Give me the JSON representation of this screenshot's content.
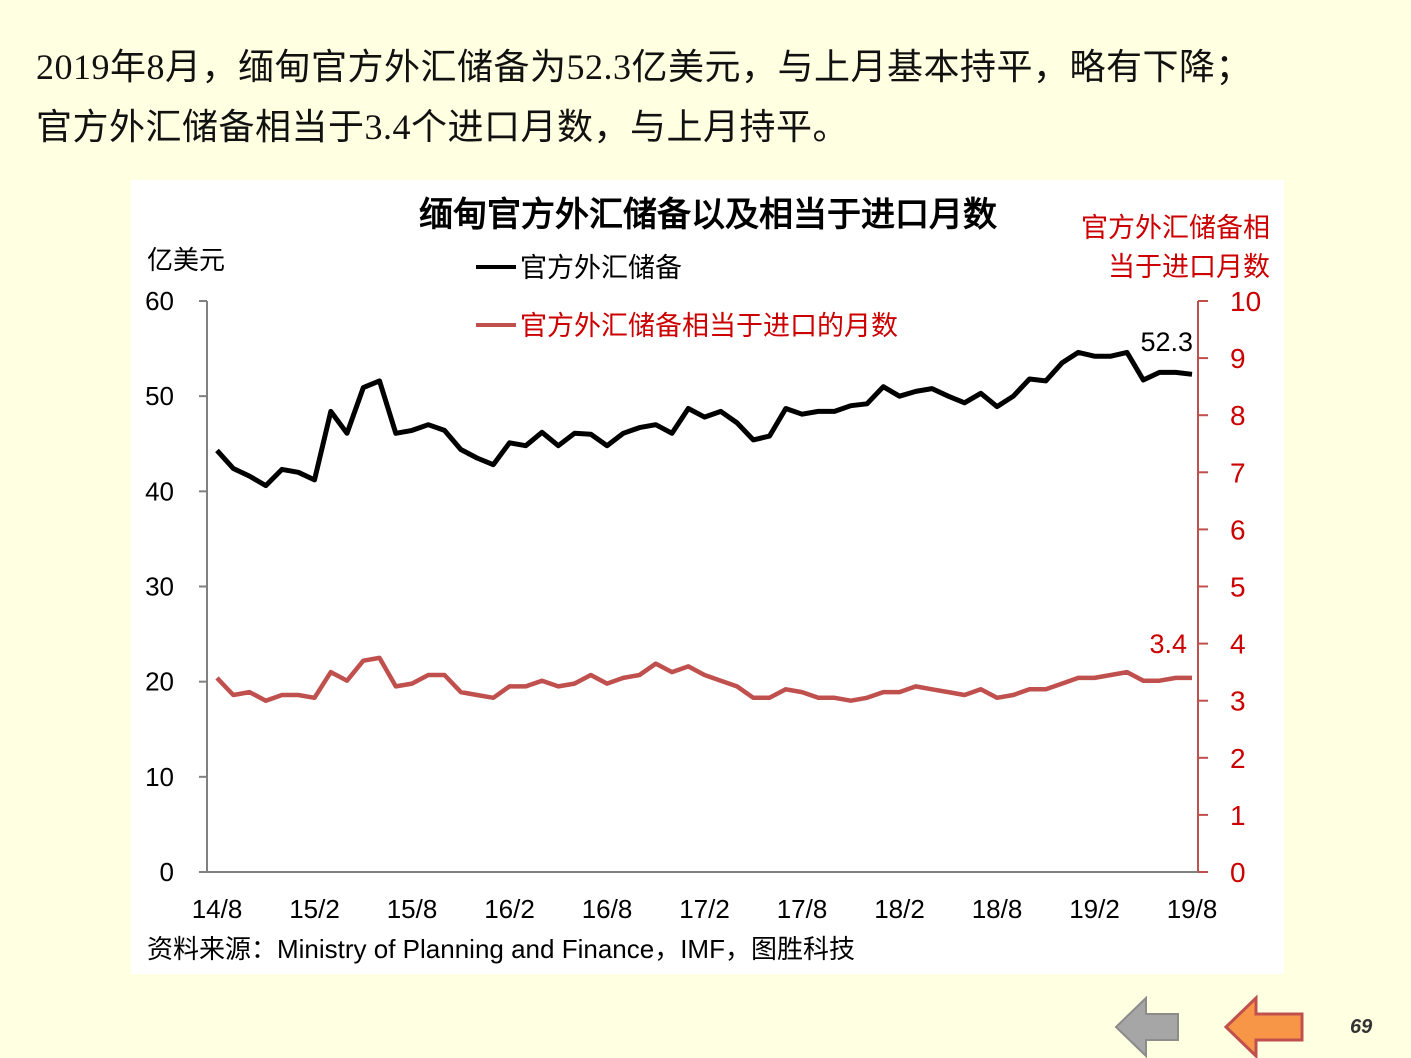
{
  "headline": {
    "line1": "2019年8月，缅甸官方外汇储备为52.3亿美元，与上月基本持平，略有下降；",
    "line2": "官方外汇储备相当于3.4个进口月数，与上月持平。"
  },
  "chart_data": {
    "type": "line",
    "title": "缅甸官方外汇储备以及相当于进口月数",
    "ylabel_left": "亿美元",
    "ylabel_right": "官方外汇储备相当于进口月数",
    "ylabel_right_lines": [
      "官方外汇储备相",
      "当于进口月数"
    ],
    "ylim_left": [
      0,
      60
    ],
    "ylim_right": [
      0,
      10
    ],
    "yticks_left": [
      "0",
      "10",
      "20",
      "30",
      "40",
      "50",
      "60"
    ],
    "yticks_right": [
      "0",
      "1",
      "2",
      "3",
      "4",
      "5",
      "6",
      "7",
      "8",
      "9",
      "10"
    ],
    "xtick_labels": [
      "14/8",
      "15/2",
      "15/8",
      "16/2",
      "16/8",
      "17/2",
      "17/8",
      "18/2",
      "18/8",
      "19/2",
      "19/8"
    ],
    "x": [
      "14/8",
      "14/9",
      "14/10",
      "14/11",
      "14/12",
      "15/1",
      "15/2",
      "15/3",
      "15/4",
      "15/5",
      "15/6",
      "15/7",
      "15/8",
      "15/9",
      "15/10",
      "15/11",
      "15/12",
      "16/1",
      "16/2",
      "16/3",
      "16/4",
      "16/5",
      "16/6",
      "16/7",
      "16/8",
      "16/9",
      "16/10",
      "16/11",
      "16/12",
      "17/1",
      "17/2",
      "17/3",
      "17/4",
      "17/5",
      "17/6",
      "17/7",
      "17/8",
      "17/9",
      "17/10",
      "17/11",
      "17/12",
      "18/1",
      "18/2",
      "18/3",
      "18/4",
      "18/5",
      "18/6",
      "18/7",
      "18/8",
      "18/9",
      "18/10",
      "18/11",
      "18/12",
      "19/1",
      "19/2",
      "19/3",
      "19/4",
      "19/5",
      "19/6",
      "19/7",
      "19/8"
    ],
    "grid": false,
    "legend_placement": "top-center",
    "series": [
      {
        "name": "官方外汇储备",
        "axis": "left",
        "color": "#000000",
        "values": [
          44.3,
          42.4,
          41.6,
          40.6,
          42.3,
          42.0,
          41.2,
          48.4,
          46.1,
          50.9,
          51.6,
          46.1,
          46.4,
          47.0,
          46.4,
          44.4,
          43.5,
          42.8,
          45.1,
          44.8,
          46.2,
          44.8,
          46.1,
          46.0,
          44.8,
          46.1,
          46.7,
          47.0,
          46.1,
          48.7,
          47.8,
          48.4,
          47.2,
          45.4,
          45.8,
          48.7,
          48.1,
          48.4,
          48.4,
          49.0,
          49.2,
          51.0,
          50.0,
          50.5,
          50.8,
          50.0,
          49.3,
          50.3,
          48.9,
          50.0,
          51.8,
          51.6,
          53.5,
          54.6,
          54.2,
          54.2,
          54.6,
          51.7,
          52.5,
          52.5,
          52.3
        ],
        "end_label": "52.3"
      },
      {
        "name": "官方外汇储备相当于进口的月数",
        "axis": "right",
        "color": "#C0504D",
        "values": [
          3.4,
          3.1,
          3.15,
          3.0,
          3.1,
          3.1,
          3.05,
          3.5,
          3.35,
          3.7,
          3.75,
          3.25,
          3.3,
          3.45,
          3.45,
          3.15,
          3.1,
          3.05,
          3.25,
          3.25,
          3.35,
          3.25,
          3.3,
          3.45,
          3.3,
          3.4,
          3.45,
          3.65,
          3.5,
          3.6,
          3.45,
          3.35,
          3.25,
          3.05,
          3.05,
          3.2,
          3.15,
          3.05,
          3.05,
          3.0,
          3.05,
          3.15,
          3.15,
          3.25,
          3.2,
          3.15,
          3.1,
          3.2,
          3.05,
          3.1,
          3.2,
          3.2,
          3.3,
          3.4,
          3.4,
          3.45,
          3.5,
          3.35,
          3.35,
          3.4,
          3.4
        ],
        "end_label": "3.4"
      }
    ],
    "source": "资料来源：Ministry of Planning and Finance，IMF，图胜科技"
  },
  "colors": {
    "background": "#FFFFE1",
    "right_axis": "#C0504D",
    "right_text": "#CC0000",
    "left_axis": "#808080"
  },
  "footer": {
    "page_number": "69",
    "prev_icon": "gray-left-arrow",
    "back_icon": "orange-left-arrow"
  }
}
